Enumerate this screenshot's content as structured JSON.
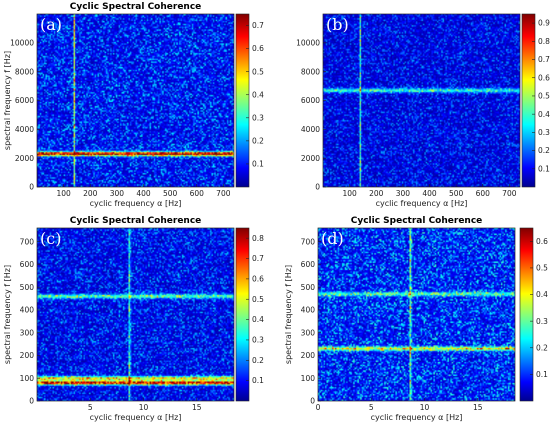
{
  "chart_data": [
    {
      "type": "heatmap",
      "panel": "(a)",
      "title": "Cyclic Spectral Coherence",
      "xlabel": "cyclic frequency α [Hz]",
      "ylabel": "spectral frequency f [Hz]",
      "xlim": [
        0,
        740
      ],
      "ylim": [
        0,
        12000
      ],
      "xticks": [
        100,
        200,
        300,
        400,
        500,
        600,
        700
      ],
      "yticks": [
        0,
        2000,
        4000,
        6000,
        8000,
        10000
      ],
      "colorbar": {
        "min": 0,
        "max": 0.75,
        "ticks": [
          0.1,
          0.2,
          0.3,
          0.4,
          0.5,
          0.6,
          0.7
        ]
      },
      "features": [
        {
          "kind": "horizontal-band",
          "at": 2300,
          "strength": 0.65
        },
        {
          "kind": "vertical-line",
          "at": 140,
          "strength": 0.35
        }
      ]
    },
    {
      "type": "heatmap",
      "panel": "(b)",
      "title": "",
      "xlabel": "cyclic frequency α [Hz]",
      "ylabel": "",
      "xlim": [
        0,
        740
      ],
      "ylim": [
        0,
        12000
      ],
      "xticks": [
        100,
        200,
        300,
        400,
        500,
        600,
        700
      ],
      "yticks": [
        0,
        2000,
        4000,
        6000,
        8000,
        10000
      ],
      "colorbar": {
        "min": 0,
        "max": 0.95,
        "ticks": [
          0.1,
          0.2,
          0.3,
          0.4,
          0.5,
          0.6,
          0.7,
          0.8,
          0.9
        ]
      },
      "features": [
        {
          "kind": "horizontal-band",
          "at": 6700,
          "strength": 0.3
        },
        {
          "kind": "vertical-line",
          "at": 140,
          "strength": 0.35
        }
      ]
    },
    {
      "type": "heatmap",
      "panel": "(c)",
      "title": "Cyclic Spectral Coherence",
      "xlabel": "cyclic frequency α [Hz]",
      "ylabel": "spectral frequency f [Hz]",
      "xlim": [
        0,
        18.5
      ],
      "ylim": [
        0,
        760
      ],
      "xticks": [
        5,
        10,
        15
      ],
      "yticks": [
        0,
        100,
        200,
        300,
        400,
        500,
        600,
        700
      ],
      "colorbar": {
        "min": 0,
        "max": 0.85,
        "ticks": [
          0.1,
          0.2,
          0.3,
          0.4,
          0.5,
          0.6,
          0.7,
          0.8
        ]
      },
      "features": [
        {
          "kind": "horizontal-band",
          "at": 80,
          "strength": 0.7
        },
        {
          "kind": "horizontal-band",
          "at": 100,
          "strength": 0.45
        },
        {
          "kind": "horizontal-band",
          "at": 460,
          "strength": 0.3
        },
        {
          "kind": "vertical-line",
          "at": 8.7,
          "strength": 0.4
        }
      ]
    },
    {
      "type": "heatmap",
      "panel": "(d)",
      "title": "Cyclic Spectral Coherence",
      "xlabel": "cyclic frequency α [Hz]",
      "ylabel": "spectral frequency f [Hz]",
      "xlim": [
        0,
        18.5
      ],
      "ylim": [
        0,
        760
      ],
      "xticks": [
        0,
        5,
        10,
        15
      ],
      "yticks": [
        0,
        100,
        200,
        300,
        400,
        500,
        600,
        700
      ],
      "colorbar": {
        "min": 0,
        "max": 0.65,
        "ticks": [
          0.1,
          0.2,
          0.3,
          0.4,
          0.5,
          0.6
        ]
      },
      "features": [
        {
          "kind": "horizontal-band",
          "at": 230,
          "strength": 0.3
        },
        {
          "kind": "horizontal-band",
          "at": 470,
          "strength": 0.2
        },
        {
          "kind": "vertical-line",
          "at": 8.7,
          "strength": 0.35
        }
      ]
    }
  ]
}
